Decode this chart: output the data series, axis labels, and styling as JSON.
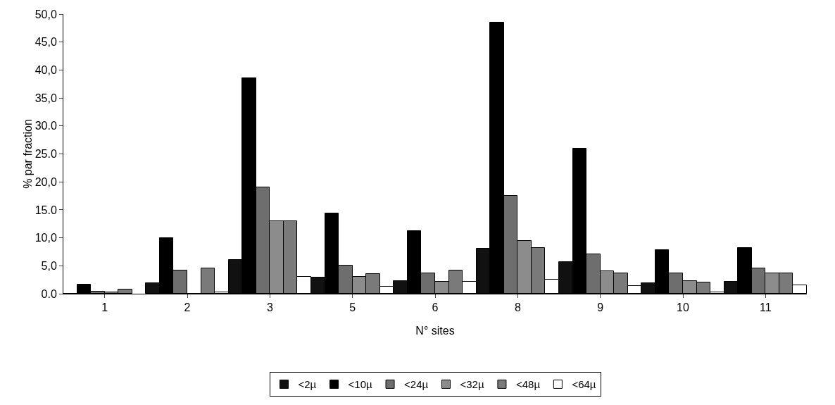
{
  "chart_data": {
    "type": "bar",
    "xlabel": "N° sites",
    "ylabel": "% par fraction",
    "categories": [
      "1",
      "2",
      "3",
      "5",
      "6",
      "8",
      "9",
      "10",
      "11"
    ],
    "series": [
      {
        "name": "<2µ",
        "color": "#111111",
        "values": [
          0,
          1.9,
          6.0,
          2.9,
          2.3,
          8.0,
          5.7,
          1.9,
          2.2
        ]
      },
      {
        "name": "<10µ",
        "color": "#000000",
        "values": [
          1.7,
          10.0,
          38.5,
          14.3,
          11.2,
          48.5,
          26.0,
          7.8,
          8.2
        ]
      },
      {
        "name": "<24µ",
        "color": "#6e6e6e",
        "values": [
          0.4,
          4.2,
          19.0,
          5.0,
          3.6,
          17.5,
          7.1,
          3.7,
          4.5
        ]
      },
      {
        "name": "<32µ",
        "color": "#8c8c8c",
        "values": [
          0.2,
          0,
          13.0,
          3.0,
          2.2,
          9.5,
          4.0,
          2.3,
          3.6
        ]
      },
      {
        "name": "<48µ",
        "color": "#7a7a7a",
        "values": [
          0.7,
          4.5,
          13.0,
          3.5,
          4.1,
          8.2,
          3.7,
          2.0,
          3.7
        ]
      },
      {
        "name": "<64µ",
        "color": "#ffffff",
        "values": [
          null,
          0.2,
          3.0,
          1.3,
          2.1,
          2.5,
          1.4,
          0.3,
          1.5
        ]
      }
    ],
    "ylim": [
      0,
      50
    ],
    "yticks": [
      {
        "value": 0,
        "label": "0.0"
      },
      {
        "value": 5,
        "label": "5,0"
      },
      {
        "value": 10,
        "label": "10,0"
      },
      {
        "value": 15,
        "label": "15.0"
      },
      {
        "value": 20,
        "label": "20,0"
      },
      {
        "value": 25,
        "label": "25.0"
      },
      {
        "value": 30,
        "label": "30.0"
      },
      {
        "value": 35,
        "label": "35,0"
      },
      {
        "value": 40,
        "label": "40,0"
      },
      {
        "value": 45,
        "label": "45,0"
      },
      {
        "value": 50,
        "label": "50,0"
      }
    ],
    "legend": "bottom"
  }
}
